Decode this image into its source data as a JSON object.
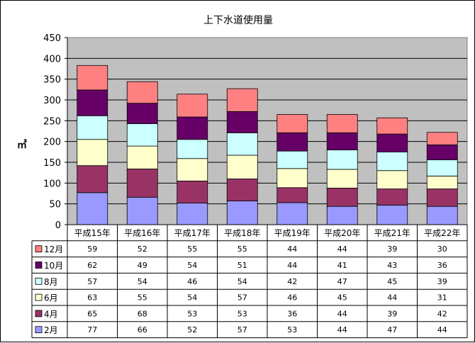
{
  "chart_data": {
    "type": "bar",
    "stacked": true,
    "title": "上下水道使用量",
    "ylabel": "㎥",
    "xlabel": "",
    "ylim": [
      0,
      450
    ],
    "ytick_step": 50,
    "yticks": [
      "0",
      "50",
      "100",
      "150",
      "200",
      "250",
      "300",
      "350",
      "400",
      "450"
    ],
    "grid": true,
    "plot_background": "#C0C0C0",
    "categories": [
      "平成15年",
      "平成16年",
      "平成17年",
      "平成18年",
      "平成19年",
      "平成20年",
      "平成21年",
      "平成22年"
    ],
    "series": [
      {
        "name": "2月",
        "color": "#9999FF",
        "values": [
          77,
          66,
          52,
          57,
          53,
          44,
          47,
          44
        ]
      },
      {
        "name": "4月",
        "color": "#993366",
        "values": [
          65,
          68,
          53,
          53,
          36,
          44,
          39,
          42
        ]
      },
      {
        "name": "6月",
        "color": "#FFFFCC",
        "values": [
          63,
          55,
          54,
          57,
          46,
          45,
          44,
          31
        ]
      },
      {
        "name": "8月",
        "color": "#CCFFFF",
        "values": [
          57,
          54,
          46,
          54,
          42,
          47,
          45,
          39
        ]
      },
      {
        "name": "10月",
        "color": "#660066",
        "values": [
          62,
          49,
          54,
          51,
          44,
          41,
          43,
          36
        ]
      },
      {
        "name": "12月",
        "color": "#FF8080",
        "values": [
          59,
          52,
          55,
          55,
          44,
          44,
          39,
          30
        ]
      }
    ],
    "table_row_order": [
      "12月",
      "10月",
      "8月",
      "6月",
      "4月",
      "2月"
    ]
  }
}
